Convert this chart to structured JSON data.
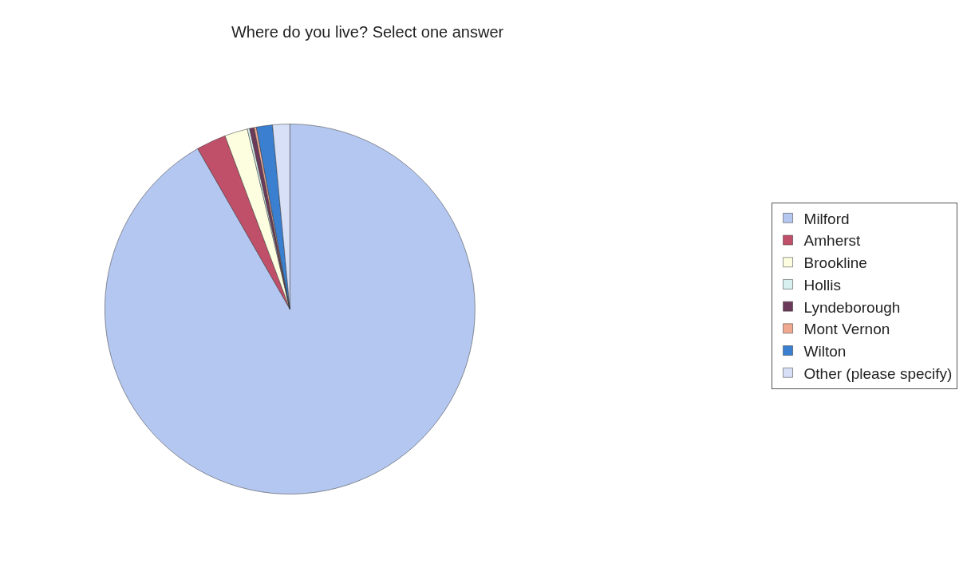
{
  "chart_data": {
    "type": "pie",
    "title": "Where do you live? Select one answer",
    "categories": [
      "Milford",
      "Amherst",
      "Brookline",
      "Hollis",
      "Lyndeborough",
      "Mont Vernon",
      "Wilton",
      "Other (please specify)"
    ],
    "values": [
      91.7,
      2.6,
      2.0,
      0.2,
      0.4,
      0.2,
      1.4,
      1.5
    ],
    "colors": [
      "#b4c7f0",
      "#c0506a",
      "#fdfde0",
      "#d8f0f0",
      "#6b3a5a",
      "#f0a890",
      "#3a7fd0",
      "#d8e0f8"
    ],
    "legend": "right"
  }
}
